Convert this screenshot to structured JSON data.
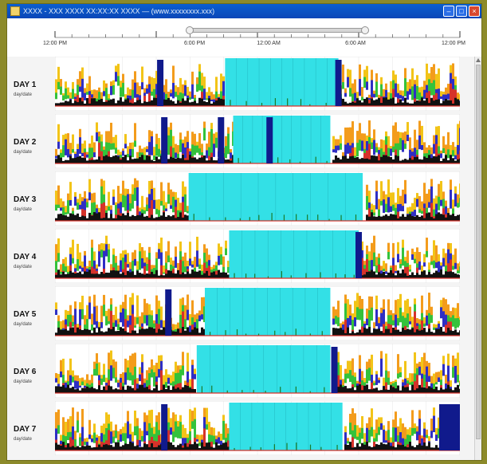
{
  "window": {
    "title": "XXXX - XXX XXXX XX:XX:XX XXXX — (www.xxxxxxxx.xxx)",
    "minimize_glyph": "–",
    "maximize_glyph": "□",
    "close_glyph": "×"
  },
  "timeline": {
    "labels": [
      "12:00 PM",
      "6:00 PM",
      "12:00 AM",
      "6:00 AM",
      "12:00 PM"
    ],
    "visible_fraction_start": 0.35,
    "visible_fraction_end": 0.78
  },
  "days": [
    {
      "label": "DAY 1",
      "sub": "day/date",
      "sleep_start": 0.42,
      "sleep_end": 0.7,
      "blue_markers": [
        0.26,
        0.7
      ],
      "trailing_block": false
    },
    {
      "label": "DAY 2",
      "sub": "day/date",
      "sleep_start": 0.44,
      "sleep_end": 0.68,
      "blue_markers": [
        0.27,
        0.41,
        0.53
      ],
      "trailing_block": false
    },
    {
      "label": "DAY 3",
      "sub": "day/date",
      "sleep_start": 0.33,
      "sleep_end": 0.76,
      "blue_markers": [],
      "trailing_block": false
    },
    {
      "label": "DAY 4",
      "sub": "day/date",
      "sleep_start": 0.43,
      "sleep_end": 0.75,
      "blue_markers": [
        0.75
      ],
      "trailing_block": false
    },
    {
      "label": "DAY 5",
      "sub": "day/date",
      "sleep_start": 0.37,
      "sleep_end": 0.68,
      "blue_markers": [
        0.28
      ],
      "trailing_block": false
    },
    {
      "label": "DAY 6",
      "sub": "day/date",
      "sleep_start": 0.35,
      "sleep_end": 0.68,
      "blue_markers": [
        0.69
      ],
      "trailing_block": false
    },
    {
      "label": "DAY 7",
      "sub": "day/date",
      "sleep_start": 0.43,
      "sleep_end": 0.71,
      "blue_markers": [
        0.27
      ],
      "trailing_block": true
    }
  ],
  "colors": {
    "sleep": "#33e0e6",
    "marker": "#101a8c",
    "activity_yellow": "#f2c418",
    "activity_orange": "#f39c1c",
    "activity_green": "#34c23b",
    "activity_red": "#d6322a",
    "activity_blue": "#2e2ec4",
    "baseline_black": "#111111",
    "white_spikes": "#ffffff",
    "gray_bar": "#9a9a9a"
  }
}
